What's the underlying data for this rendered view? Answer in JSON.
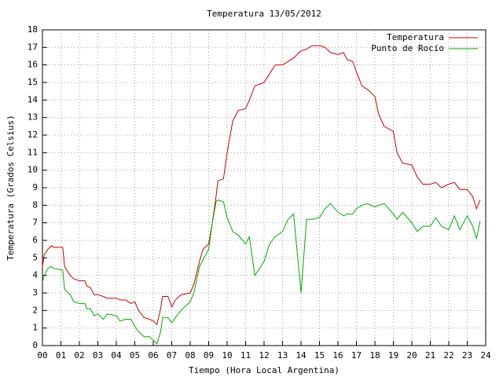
{
  "chart_data": {
    "type": "line",
    "title": "Temperatura 13/05/2012",
    "xlabel": "Tiempo (Hora Local Argentina)",
    "ylabel": "Temperatura (Grados Celsius)",
    "x": [
      0.0,
      0.1,
      0.3,
      0.5,
      0.6,
      1.1,
      1.2,
      1.5,
      1.7,
      2.0,
      2.3,
      2.4,
      2.6,
      2.8,
      3.0,
      3.3,
      3.5,
      4.0,
      4.2,
      4.5,
      4.8,
      5.0,
      5.2,
      5.5,
      5.8,
      6.0,
      6.2,
      6.4,
      6.5,
      6.8,
      7.0,
      7.2,
      7.5,
      8.0,
      8.2,
      8.5,
      8.7,
      9.0,
      9.2,
      9.4,
      9.5,
      9.8,
      10.0,
      10.3,
      10.6,
      11.0,
      11.2,
      11.5,
      12.0,
      12.3,
      12.6,
      13.0,
      13.3,
      13.6,
      14.0,
      14.3,
      14.6,
      15.0,
      15.3,
      15.6,
      16.0,
      16.3,
      16.5,
      16.8,
      17.0,
      17.3,
      17.6,
      18.0,
      18.2,
      18.5,
      19.0,
      19.2,
      19.5,
      20.0,
      20.3,
      20.6,
      21.0,
      21.3,
      21.6,
      22.0,
      22.3,
      22.6,
      23.0,
      23.3,
      23.5,
      23.7
    ],
    "series": [
      {
        "name": "Temperatura",
        "color": "#cc0000",
        "values": [
          4.5,
          5.2,
          5.5,
          5.7,
          5.6,
          5.6,
          4.5,
          4.0,
          3.8,
          3.7,
          3.7,
          3.4,
          3.3,
          2.9,
          2.9,
          2.8,
          2.7,
          2.7,
          2.6,
          2.6,
          2.4,
          2.5,
          2.0,
          1.6,
          1.5,
          1.4,
          1.2,
          2.1,
          2.8,
          2.8,
          2.2,
          2.6,
          2.9,
          3.0,
          3.5,
          4.8,
          5.5,
          5.8,
          7.0,
          8.5,
          9.4,
          9.5,
          11.0,
          12.8,
          13.4,
          13.5,
          14.0,
          14.8,
          15.0,
          15.5,
          16.0,
          16.0,
          16.2,
          16.4,
          16.8,
          16.9,
          17.1,
          17.1,
          17.0,
          16.7,
          16.6,
          16.7,
          16.3,
          16.2,
          15.6,
          14.8,
          14.6,
          14.2,
          13.2,
          12.5,
          12.2,
          11.0,
          10.4,
          10.3,
          9.6,
          9.2,
          9.2,
          9.3,
          9.0,
          9.2,
          9.3,
          8.9,
          8.9,
          8.5,
          7.8,
          8.3
        ]
      },
      {
        "name": "Punto de Rocío",
        "color": "#00aa00",
        "values": [
          3.6,
          4.0,
          4.4,
          4.5,
          4.4,
          4.3,
          3.2,
          2.9,
          2.5,
          2.4,
          2.4,
          2.1,
          2.1,
          1.7,
          1.8,
          1.5,
          1.8,
          1.7,
          1.4,
          1.5,
          1.5,
          1.1,
          0.8,
          0.5,
          0.5,
          0.3,
          0.1,
          0.8,
          1.6,
          1.6,
          1.3,
          1.6,
          2.0,
          2.5,
          3.0,
          4.5,
          4.9,
          5.5,
          7.0,
          8.2,
          8.3,
          8.2,
          7.3,
          6.5,
          6.3,
          5.8,
          6.2,
          4.0,
          4.8,
          5.8,
          6.2,
          6.5,
          7.2,
          7.5,
          3.0,
          7.2,
          7.2,
          7.3,
          7.8,
          8.1,
          7.6,
          7.4,
          7.5,
          7.5,
          7.8,
          8.0,
          8.1,
          7.9,
          8.0,
          8.1,
          7.5,
          7.2,
          7.6,
          7.0,
          6.5,
          6.8,
          6.8,
          7.3,
          6.8,
          6.6,
          7.4,
          6.6,
          7.4,
          6.8,
          6.1,
          7.1
        ]
      }
    ],
    "xlim": [
      0,
      24
    ],
    "xticks": [
      {
        "value": 0,
        "label": "00"
      },
      {
        "value": 1,
        "label": "01"
      },
      {
        "value": 2,
        "label": "02"
      },
      {
        "value": 3,
        "label": "03"
      },
      {
        "value": 4,
        "label": "04"
      },
      {
        "value": 5,
        "label": "05"
      },
      {
        "value": 6,
        "label": "06"
      },
      {
        "value": 7,
        "label": "07"
      },
      {
        "value": 8,
        "label": "08"
      },
      {
        "value": 9,
        "label": "09"
      },
      10,
      11,
      12,
      13,
      14,
      15,
      16,
      17,
      18,
      19,
      20,
      21,
      22,
      23,
      24
    ],
    "ylim": [
      0,
      18
    ],
    "yticks": [
      0,
      1,
      2,
      3,
      4,
      5,
      6,
      7,
      8,
      9,
      10,
      11,
      12,
      13,
      14,
      15,
      16,
      17,
      18
    ],
    "grid": true,
    "legend": "top-right"
  }
}
